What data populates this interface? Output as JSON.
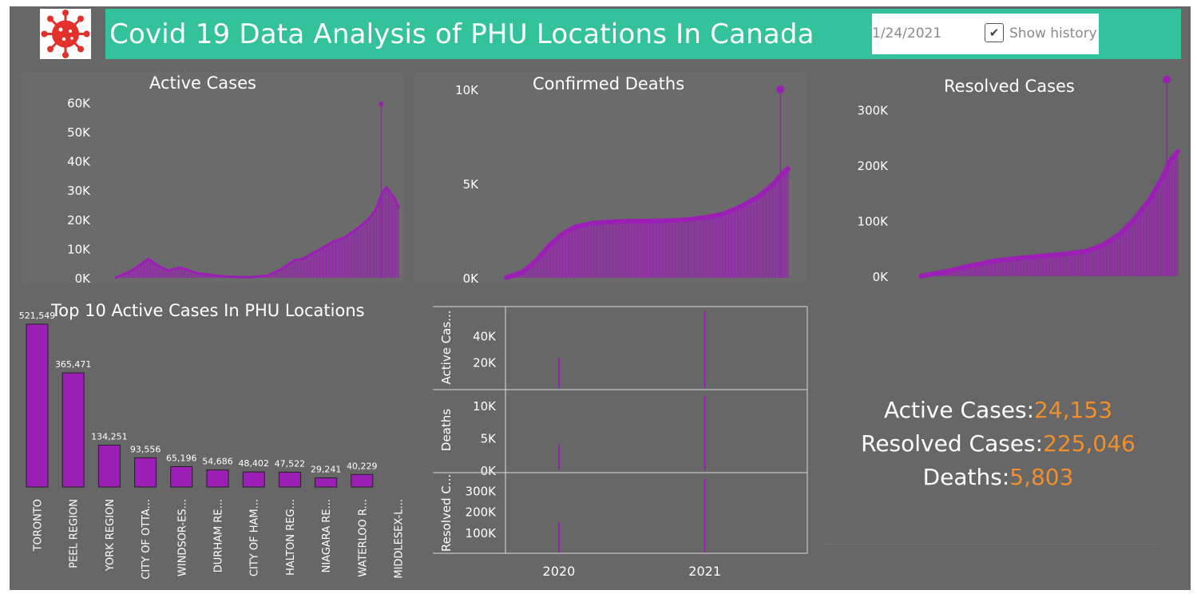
{
  "header": {
    "title": "Covid 19 Data Analysis of PHU Locations In Canada",
    "date_value": "1/24/2021",
    "show_history_label": "Show history",
    "show_history_checked": true,
    "logo_icon": "coronavirus-icon"
  },
  "colors": {
    "banner": "#33c29c",
    "background": "#676767",
    "series": "#9b1fb5",
    "accent": "#f28e2b"
  },
  "chart_data": [
    {
      "id": "active",
      "type": "area",
      "title": "Active Cases",
      "x_range": [
        "2020-03-01",
        "2021-01-24"
      ],
      "ylim": [
        0,
        65000
      ],
      "yticks": [
        0,
        10000,
        20000,
        30000,
        40000,
        50000,
        60000
      ],
      "ytick_labels": [
        "0K",
        "10K",
        "20K",
        "30K",
        "40K",
        "50K",
        "60K"
      ],
      "x": [
        "2020-03-01",
        "2020-03-20",
        "2020-04-08",
        "2020-04-20",
        "2020-05-01",
        "2020-05-15",
        "2020-05-25",
        "2020-06-05",
        "2020-06-20",
        "2020-07-05",
        "2020-07-20",
        "2020-08-05",
        "2020-08-25",
        "2020-09-10",
        "2020-09-25",
        "2020-10-05",
        "2020-10-20",
        "2020-11-01",
        "2020-11-10",
        "2020-11-20",
        "2020-12-01",
        "2020-12-10",
        "2020-12-20",
        "2020-12-28",
        "2021-01-05",
        "2021-01-10",
        "2021-01-15",
        "2021-01-20",
        "2021-01-24"
      ],
      "values": [
        100,
        2500,
        6500,
        4000,
        2500,
        3500,
        2500,
        1500,
        1000,
        500,
        300,
        200,
        800,
        3000,
        6000,
        6500,
        9000,
        11000,
        12500,
        13500,
        15500,
        17500,
        20000,
        23000,
        29000,
        31000,
        29000,
        27000,
        24153
      ],
      "spike": {
        "x": "2021-01-04",
        "value": 59500
      }
    },
    {
      "id": "deaths",
      "type": "area",
      "title": "Confirmed Deaths",
      "x_range": [
        "2020-03-01",
        "2021-01-24"
      ],
      "ylim": [
        0,
        10000
      ],
      "yticks": [
        0,
        5000,
        10000
      ],
      "ytick_labels": [
        "0K",
        "5K",
        "10K"
      ],
      "x": [
        "2020-03-01",
        "2020-03-20",
        "2020-04-05",
        "2020-04-20",
        "2020-05-05",
        "2020-05-20",
        "2020-06-10",
        "2020-07-01",
        "2020-07-20",
        "2020-08-15",
        "2020-09-15",
        "2020-10-01",
        "2020-10-20",
        "2020-11-10",
        "2020-12-01",
        "2020-12-20",
        "2021-01-05",
        "2021-01-15",
        "2021-01-24"
      ],
      "values": [
        10,
        300,
        900,
        1700,
        2300,
        2700,
        2900,
        2970,
        3000,
        3010,
        3050,
        3100,
        3200,
        3400,
        3800,
        4300,
        4900,
        5400,
        5803
      ],
      "spike": {
        "x": "2021-01-15",
        "value": 10000
      }
    },
    {
      "id": "resolved",
      "type": "area",
      "title": "Resolved Cases",
      "x_range": [
        "2020-03-01",
        "2021-01-24"
      ],
      "ylim": [
        0,
        350000
      ],
      "yticks": [
        0,
        100000,
        200000,
        300000
      ],
      "ytick_labels": [
        "0K",
        "100K",
        "200K",
        "300K"
      ],
      "x": [
        "2020-03-01",
        "2020-04-01",
        "2020-05-01",
        "2020-06-01",
        "2020-07-01",
        "2020-08-01",
        "2020-09-01",
        "2020-10-01",
        "2020-10-20",
        "2020-11-10",
        "2020-12-01",
        "2020-12-20",
        "2021-01-05",
        "2021-01-15",
        "2021-01-24"
      ],
      "values": [
        100,
        8000,
        18000,
        27000,
        32000,
        36000,
        40000,
        46000,
        56000,
        75000,
        105000,
        140000,
        180000,
        210000,
        225046
      ],
      "spike": {
        "x": "2021-01-10",
        "value": 355000
      }
    },
    {
      "id": "top10",
      "type": "bar",
      "title": "Top 10 Active Cases In PHU Locations",
      "categories": [
        "TORONTO",
        "PEEL REGION",
        "YORK REGION",
        "CITY OF OTTA...",
        "WINDSOR-ES...",
        "DURHAM RE...",
        "CITY OF HAM...",
        "HALTON REG...",
        "NIAGARA RE...",
        "WATERLOO R...",
        "MIDDLESEX-L..."
      ],
      "values": [
        521549,
        365471,
        134251,
        93556,
        65196,
        54686,
        48402,
        47522,
        29241,
        40229,
        null
      ],
      "value_labels": [
        "521,549",
        "365,471",
        "134,251",
        "93,556",
        "65,196",
        "54,686",
        "48,402",
        "47,522",
        "29,241",
        "40,229",
        ""
      ]
    },
    {
      "id": "history",
      "type": "bar",
      "x_range": [
        "2019-08-20",
        "2021-09-15"
      ],
      "xticks": [
        "2020-01-01",
        "2021-01-01"
      ],
      "xtick_labels": [
        "2020",
        "2021"
      ],
      "rows": [
        {
          "label": "Active Cas...",
          "ylim": [
            0,
            60000
          ],
          "yticks": [
            20000,
            40000
          ],
          "ytick_labels": [
            "20K",
            "40K"
          ],
          "bars": [
            {
              "x": "2020-01-01",
              "value": 23000
            },
            {
              "x": "2021-01-01",
              "value": 59000
            }
          ]
        },
        {
          "label": "Deaths",
          "ylim": [
            0,
            12000
          ],
          "yticks": [
            0,
            5000,
            10000
          ],
          "ytick_labels": [
            "0K",
            "5K",
            "10K"
          ],
          "bars": [
            {
              "x": "2020-01-01",
              "value": 4000
            },
            {
              "x": "2021-01-01",
              "value": 11500
            }
          ]
        },
        {
          "label": "Resolved C...",
          "ylim": [
            0,
            370000
          ],
          "yticks": [
            100000,
            200000,
            300000
          ],
          "ytick_labels": [
            "100K",
            "200K",
            "300K"
          ],
          "bars": [
            {
              "x": "2020-01-01",
              "value": 150000
            },
            {
              "x": "2021-01-01",
              "value": 355000
            }
          ]
        }
      ]
    }
  ],
  "summary": {
    "active_label": "Active Cases:",
    "active_value": "24,153",
    "resolved_label": "Resolved Cases:",
    "resolved_value": "225,046",
    "deaths_label": "Deaths:",
    "deaths_value": "5,803"
  }
}
